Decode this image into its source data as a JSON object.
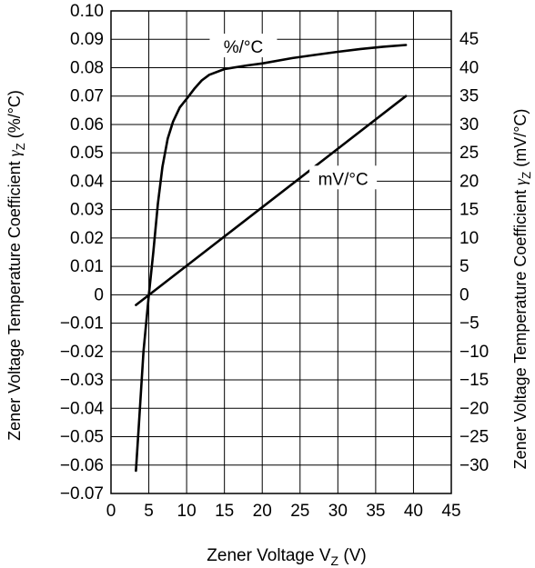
{
  "chart_data": {
    "type": "line",
    "xlabel": {
      "main": "Zener Voltage",
      "symbol": "V",
      "sub": "Z",
      "unit": "(V)"
    },
    "ylabel_left": {
      "main": "Zener Voltage Temperature Coefficient",
      "symbol": "γ",
      "sub": "Z",
      "unit": "(%/°C)"
    },
    "ylabel_right": {
      "main": "Zener Voltage Temperature Coefficient",
      "symbol": "γ",
      "sub": "Z",
      "unit": "(mV/°C)"
    },
    "xlim": [
      0,
      45
    ],
    "ylim_left": [
      -0.07,
      0.1
    ],
    "ylim_right": [
      -35,
      50
    ],
    "x_ticks": [
      "0",
      "5",
      "10",
      "15",
      "20",
      "25",
      "30",
      "35",
      "40",
      "45"
    ],
    "y_left_ticks": [
      "−0.07",
      "−0.06",
      "−0.05",
      "−0.04",
      "−0.03",
      "−0.02",
      "−0.01",
      "0",
      "0.01",
      "0.02",
      "0.03",
      "0.04",
      "0.05",
      "0.06",
      "0.07",
      "0.08",
      "0.09",
      "0.10"
    ],
    "y_right_ticks": [
      "−30",
      "−25",
      "−20",
      "−15",
      "−10",
      "−5",
      "0",
      "5",
      "10",
      "15",
      "20",
      "25",
      "30",
      "35",
      "40",
      "45"
    ],
    "grid": true,
    "series": [
      {
        "name": "%/°C",
        "axis": "left",
        "x": [
          3.3,
          3.7,
          4.3,
          5.0,
          5.6,
          6.2,
          6.8,
          7.5,
          8.2,
          9.1,
          10,
          11,
          12,
          13,
          15,
          18,
          20,
          24,
          27,
          30,
          33,
          36,
          39
        ],
        "y": [
          -0.062,
          -0.045,
          -0.02,
          0.0,
          0.015,
          0.032,
          0.045,
          0.055,
          0.061,
          0.066,
          0.069,
          0.0725,
          0.0755,
          0.0775,
          0.0795,
          0.0808,
          0.0815,
          0.0834,
          0.0845,
          0.0856,
          0.0866,
          0.0874,
          0.088
        ]
      },
      {
        "name": "mV/°C",
        "axis": "right",
        "x": [
          3.3,
          39
        ],
        "y": [
          -1.8,
          35
        ]
      }
    ]
  }
}
